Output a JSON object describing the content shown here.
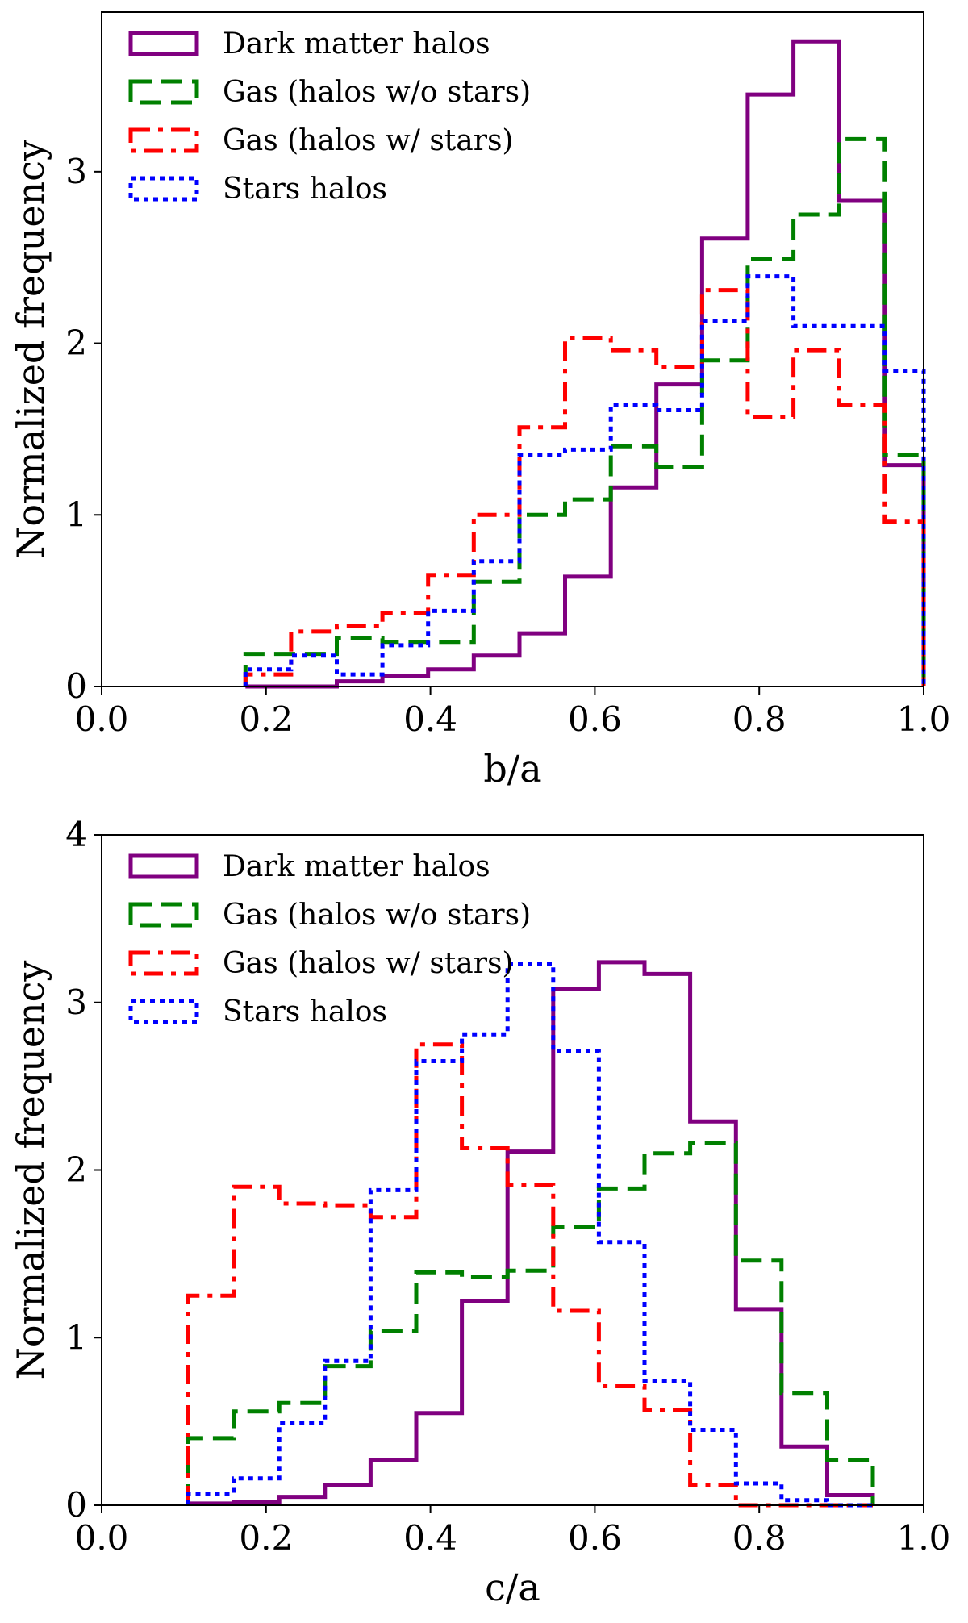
{
  "chart_data": [
    {
      "type": "step-histogram",
      "xlabel": "b/a",
      "ylabel": "Normalized frequency",
      "xlim": [
        0.0,
        1.0
      ],
      "ylim": [
        0,
        3.93
      ],
      "xticks": [
        "0.0",
        "0.2",
        "0.4",
        "0.6",
        "0.8",
        "1.0"
      ],
      "yticks": [
        "0",
        "1",
        "2",
        "3"
      ],
      "legend_position": "upper-left",
      "bin_edges": [
        0.175,
        0.2305,
        0.2861,
        0.3416,
        0.3972,
        0.4527,
        0.5083,
        0.5638,
        0.6194,
        0.6749,
        0.7305,
        0.786,
        0.8416,
        0.8971,
        0.9527,
        1.0
      ],
      "series": [
        {
          "name": "Dark matter halos",
          "style": "solid",
          "color": "#800080",
          "values": [
            0.0,
            0.0,
            0.03,
            0.06,
            0.1,
            0.18,
            0.31,
            0.64,
            1.16,
            1.76,
            2.61,
            3.45,
            3.76,
            2.83,
            1.29
          ]
        },
        {
          "name": "Gas (halos w/o stars)",
          "style": "dashed",
          "color": "#008000",
          "values": [
            0.19,
            0.19,
            0.28,
            0.26,
            0.26,
            0.61,
            1.0,
            1.09,
            1.4,
            1.28,
            1.9,
            2.49,
            2.75,
            3.19,
            1.35
          ]
        },
        {
          "name": "Gas (halos w/ stars)",
          "style": "dashdot",
          "color": "#ff0000",
          "values": [
            0.07,
            0.32,
            0.35,
            0.43,
            0.65,
            1.0,
            1.51,
            2.03,
            1.96,
            1.86,
            2.31,
            1.57,
            1.96,
            1.64,
            0.96
          ]
        },
        {
          "name": "Stars halos",
          "style": "dotted",
          "color": "#0000ff",
          "values": [
            0.1,
            0.18,
            0.07,
            0.24,
            0.44,
            0.73,
            1.35,
            1.38,
            1.64,
            1.61,
            2.13,
            2.39,
            2.1,
            2.1,
            1.84
          ]
        }
      ]
    },
    {
      "type": "step-histogram",
      "xlabel": "c/a",
      "ylabel": "Normalized frequency",
      "xlim": [
        0.0,
        1.0
      ],
      "ylim": [
        0,
        4
      ],
      "xticks": [
        "0.0",
        "0.2",
        "0.4",
        "0.6",
        "0.8",
        "1.0"
      ],
      "yticks": [
        "0",
        "1",
        "2",
        "3",
        "4"
      ],
      "legend_position": "upper-left",
      "bin_edges": [
        0.105,
        0.1605,
        0.2161,
        0.2716,
        0.3272,
        0.3827,
        0.4383,
        0.4938,
        0.5494,
        0.6049,
        0.6605,
        0.716,
        0.7716,
        0.8271,
        0.8827,
        0.9382
      ],
      "series": [
        {
          "name": "Dark matter halos",
          "style": "solid",
          "color": "#800080",
          "values": [
            0.01,
            0.02,
            0.05,
            0.12,
            0.27,
            0.55,
            1.22,
            2.11,
            3.08,
            3.24,
            3.17,
            2.29,
            1.17,
            0.35,
            0.06
          ]
        },
        {
          "name": "Gas (halos w/o stars)",
          "style": "dashed",
          "color": "#008000",
          "values": [
            0.4,
            0.56,
            0.61,
            0.83,
            1.04,
            1.39,
            1.36,
            1.4,
            1.66,
            1.89,
            2.1,
            2.16,
            1.46,
            0.67,
            0.27
          ]
        },
        {
          "name": "Gas (halos w/ stars)",
          "style": "dashdot",
          "color": "#ff0000",
          "values": [
            1.25,
            1.9,
            1.8,
            1.79,
            1.72,
            2.75,
            2.13,
            1.91,
            1.16,
            0.71,
            0.57,
            0.12,
            0.0,
            0.0,
            0.0
          ]
        },
        {
          "name": "Stars halos",
          "style": "dotted",
          "color": "#0000ff",
          "values": [
            0.07,
            0.16,
            0.49,
            0.86,
            1.88,
            2.65,
            2.81,
            3.23,
            2.71,
            1.57,
            0.74,
            0.45,
            0.13,
            0.03,
            0.0
          ]
        }
      ]
    }
  ]
}
